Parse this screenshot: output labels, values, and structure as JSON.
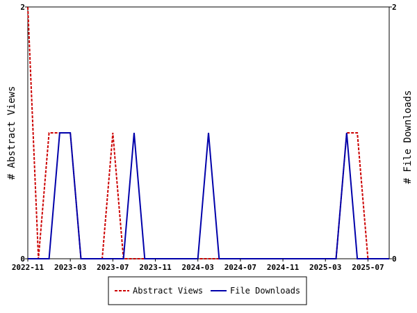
{
  "chart_data": {
    "type": "line",
    "title": "",
    "x_tick_labels": [
      "2022-11",
      "2023-03",
      "2023-07",
      "2023-11",
      "2024-03",
      "2024-07",
      "2024-11",
      "2025-03",
      "2025-07"
    ],
    "x_start": "2022-11",
    "x_end": "2025-09",
    "ylabel_left": "# Abstract Views",
    "ylabel_right": "# File Downloads",
    "ylim": [
      0,
      2
    ],
    "y_ticks": [
      0,
      2
    ],
    "grid": false,
    "legend_position": "bottom",
    "series": [
      {
        "name": "Abstract Views",
        "color": "#cc0000",
        "line_style": "dashed",
        "points": [
          [
            "2022-11",
            2
          ],
          [
            "2022-12",
            0
          ],
          [
            "2023-01",
            1
          ],
          [
            "2023-02",
            1
          ],
          [
            "2023-03",
            1
          ],
          [
            "2023-04",
            0
          ],
          [
            "2023-05",
            0
          ],
          [
            "2023-06",
            0
          ],
          [
            "2023-07",
            1
          ],
          [
            "2023-08",
            0
          ],
          [
            "2023-09",
            0
          ],
          [
            "2023-10",
            0
          ],
          [
            "2023-11",
            0
          ],
          [
            "2023-12",
            0
          ],
          [
            "2024-01",
            0
          ],
          [
            "2024-02",
            0
          ],
          [
            "2024-03",
            0
          ],
          [
            "2024-04",
            0
          ],
          [
            "2024-05",
            0
          ],
          [
            "2024-06",
            0
          ],
          [
            "2024-07",
            0
          ],
          [
            "2024-08",
            0
          ],
          [
            "2024-09",
            0
          ],
          [
            "2024-10",
            0
          ],
          [
            "2024-11",
            0
          ],
          [
            "2024-12",
            0
          ],
          [
            "2025-01",
            0
          ],
          [
            "2025-02",
            0
          ],
          [
            "2025-03",
            0
          ],
          [
            "2025-04",
            0
          ],
          [
            "2025-05",
            1
          ],
          [
            "2025-06",
            1
          ],
          [
            "2025-07",
            0
          ],
          [
            "2025-08",
            0
          ],
          [
            "2025-09",
            0
          ]
        ]
      },
      {
        "name": "File Downloads",
        "color": "#0000aa",
        "line_style": "solid",
        "points": [
          [
            "2022-11",
            0
          ],
          [
            "2022-12",
            0
          ],
          [
            "2023-01",
            0
          ],
          [
            "2023-02",
            1
          ],
          [
            "2023-03",
            1
          ],
          [
            "2023-04",
            0
          ],
          [
            "2023-05",
            0
          ],
          [
            "2023-06",
            0
          ],
          [
            "2023-07",
            0
          ],
          [
            "2023-08",
            0
          ],
          [
            "2023-09",
            1
          ],
          [
            "2023-10",
            0
          ],
          [
            "2023-11",
            0
          ],
          [
            "2023-12",
            0
          ],
          [
            "2024-01",
            0
          ],
          [
            "2024-02",
            0
          ],
          [
            "2024-03",
            0
          ],
          [
            "2024-04",
            1
          ],
          [
            "2024-05",
            0
          ],
          [
            "2024-06",
            0
          ],
          [
            "2024-07",
            0
          ],
          [
            "2024-08",
            0
          ],
          [
            "2024-09",
            0
          ],
          [
            "2024-10",
            0
          ],
          [
            "2024-11",
            0
          ],
          [
            "2024-12",
            0
          ],
          [
            "2025-01",
            0
          ],
          [
            "2025-02",
            0
          ],
          [
            "2025-03",
            0
          ],
          [
            "2025-04",
            0
          ],
          [
            "2025-05",
            1
          ],
          [
            "2025-06",
            0
          ],
          [
            "2025-07",
            0
          ],
          [
            "2025-08",
            0
          ],
          [
            "2025-09",
            0
          ]
        ]
      }
    ]
  }
}
